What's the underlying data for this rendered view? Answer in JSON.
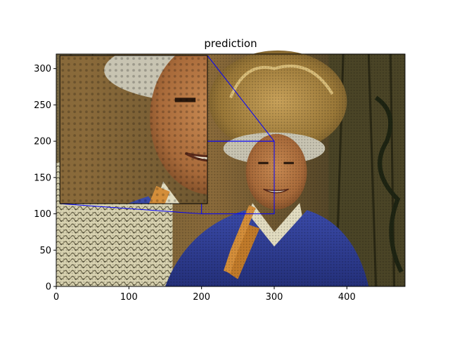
{
  "chart_data": {
    "type": "image",
    "title": "prediction",
    "xlabel": "",
    "ylabel": "",
    "xlim": [
      0,
      480
    ],
    "ylim": [
      0,
      320
    ],
    "x_ticks": [
      0,
      100,
      200,
      300,
      400
    ],
    "y_ticks": [
      0,
      50,
      100,
      150,
      200,
      250,
      300
    ],
    "zoom_region": {
      "x": [
        200,
        300
      ],
      "y": [
        100,
        200
      ]
    },
    "inset_extent": {
      "x": [
        5,
        208
      ],
      "y": [
        114,
        318
      ]
    },
    "indicator_color": "#0000ff"
  }
}
